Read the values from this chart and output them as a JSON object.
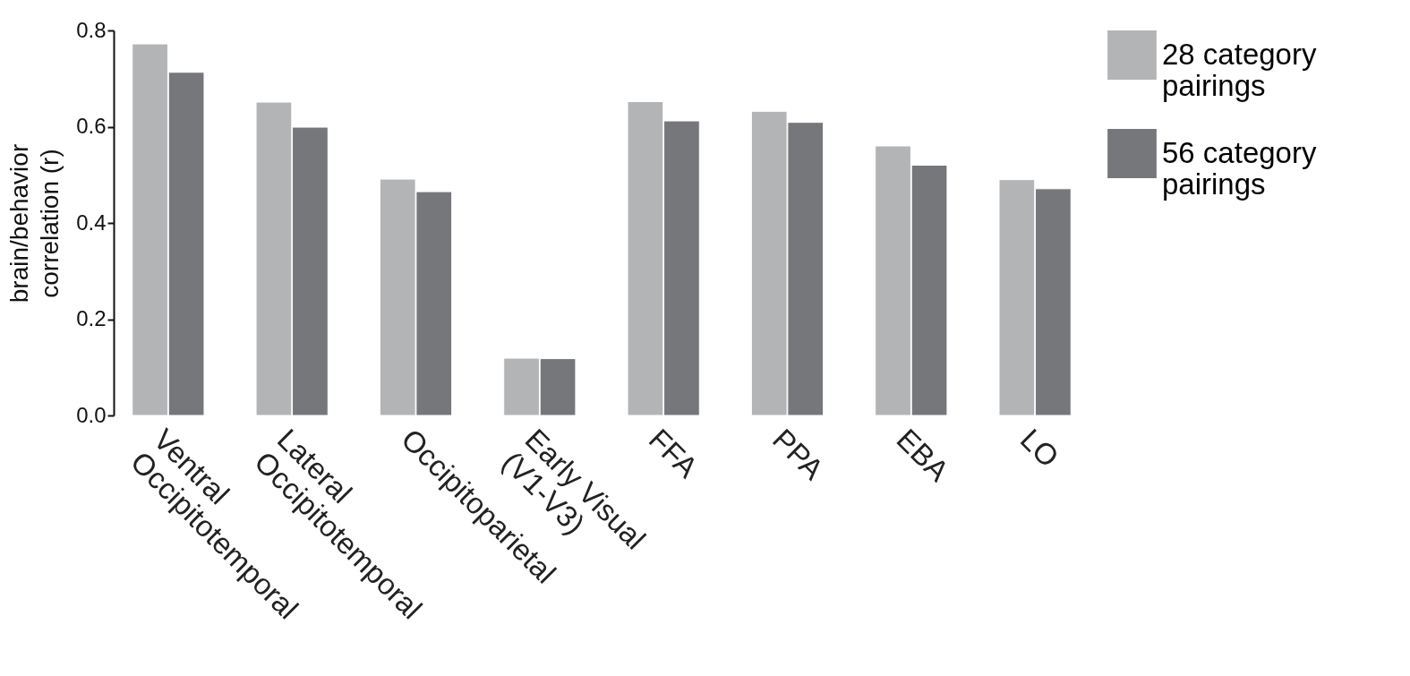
{
  "chart_data": {
    "type": "bar",
    "ylabel": "brain/behavior\ncorrelation (r)",
    "categories": [
      "Ventral\nOccipitotemporal",
      "Lateral\nOccipitotemporal",
      "Occipitoparietal",
      "Early Visual\n(V1-V3)",
      "FFA",
      "PPA",
      "EBA",
      "LO"
    ],
    "series": [
      {
        "name": "28 category\npairings",
        "color": "#b3b4b6",
        "values": [
          0.772,
          0.651,
          0.491,
          0.119,
          0.652,
          0.632,
          0.56,
          0.49
        ]
      },
      {
        "name": "56 category\npairings",
        "color": "#76777b",
        "values": [
          0.713,
          0.599,
          0.465,
          0.118,
          0.612,
          0.609,
          0.52,
          0.471
        ]
      }
    ],
    "ylim": [
      0,
      0.8
    ],
    "yticks": [
      {
        "value": 0,
        "label": "0.0"
      },
      0.2,
      0.4,
      0.6,
      0.8
    ],
    "grid": false,
    "legend": "top right"
  }
}
